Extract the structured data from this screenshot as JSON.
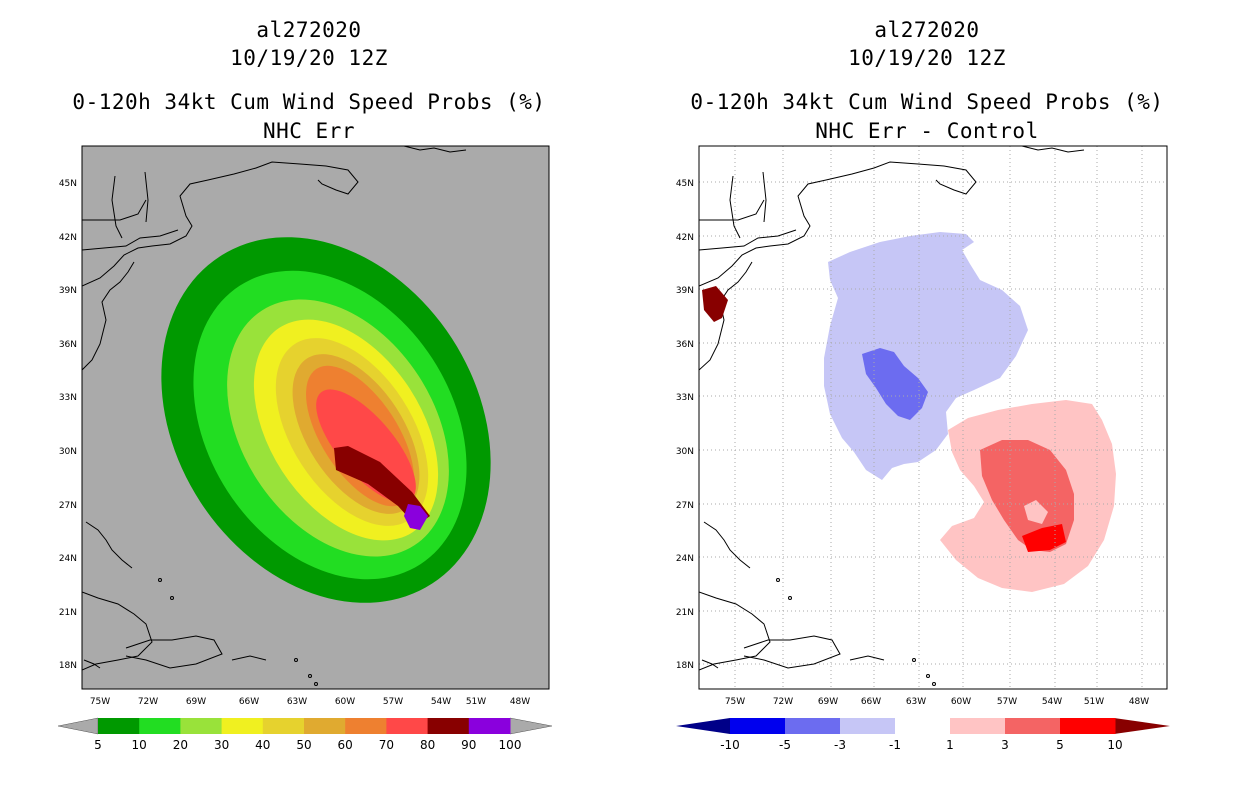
{
  "left": {
    "storm_id": "al272020",
    "datetime": "10/19/20 12Z",
    "product": "0-120h 34kt Cum Wind Speed Probs (%)",
    "subtitle": "NHC Err",
    "lat_labels": [
      "45N",
      "42N",
      "39N",
      "36N",
      "33N",
      "30N",
      "27N",
      "24N",
      "21N",
      "18N"
    ],
    "lon_labels": [
      "75W",
      "72W",
      "69W",
      "66W",
      "63W",
      "60W",
      "57W",
      "54W",
      "51W",
      "48W"
    ],
    "colorbar": {
      "labels": [
        "5",
        "10",
        "20",
        "30",
        "40",
        "50",
        "60",
        "70",
        "80",
        "90",
        "100"
      ],
      "colors": [
        "#009900",
        "#22dd22",
        "#99e23a",
        "#f0f020",
        "#e6d22e",
        "#e0aa30",
        "#ee8030",
        "#ff4848",
        "#880000",
        "#8a00dd"
      ]
    }
  },
  "right": {
    "storm_id": "al272020",
    "datetime": "10/19/20 12Z",
    "product": "0-120h 34kt Cum Wind Speed Probs (%)",
    "subtitle": "NHC Err - Control",
    "lat_labels": [
      "45N",
      "42N",
      "39N",
      "36N",
      "33N",
      "30N",
      "27N",
      "24N",
      "21N",
      "18N"
    ],
    "lon_labels": [
      "75W",
      "72W",
      "69W",
      "66W",
      "63W",
      "60W",
      "57W",
      "54W",
      "51W",
      "48W"
    ],
    "colorbar": {
      "labels": [
        "-10",
        "-5",
        "-3",
        "-1",
        "1",
        "3",
        "5",
        "10"
      ],
      "colors": [
        "#000088",
        "#0000ee",
        "#6c6cf0",
        "#c6c6f6",
        "#ffffff",
        "#ffc4c4",
        "#f46464",
        "#ff0000",
        "#880000"
      ]
    }
  }
}
